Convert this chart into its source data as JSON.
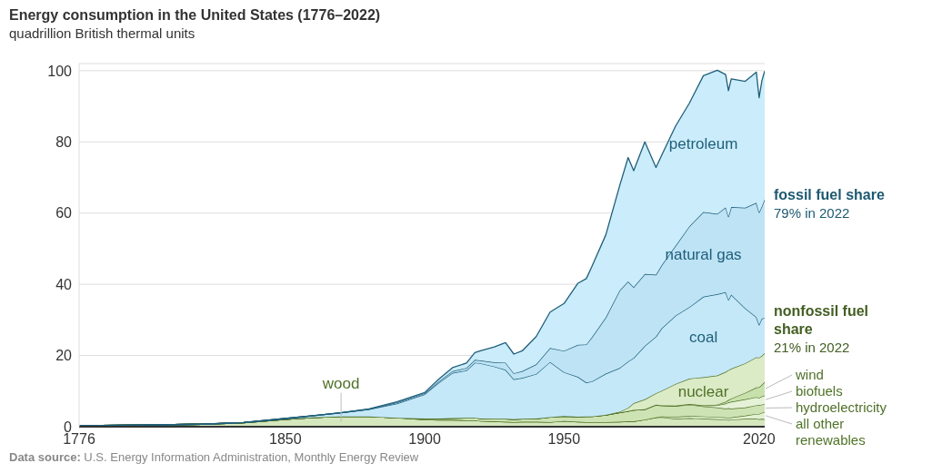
{
  "chart_data": {
    "type": "area",
    "stacked": true,
    "title": "Energy consumption in the United States (1776–2022)",
    "subtitle": "quadrillion British thermal units",
    "x": [
      1776,
      1800,
      1820,
      1835,
      1850,
      1860,
      1870,
      1880,
      1890,
      1900,
      1905,
      1910,
      1915,
      1918,
      1920,
      1925,
      1929,
      1932,
      1935,
      1940,
      1945,
      1950,
      1955,
      1958,
      1960,
      1965,
      1970,
      1973,
      1975,
      1979,
      1983,
      1985,
      1990,
      1995,
      2000,
      2005,
      2008,
      2009,
      2010,
      2015,
      2019,
      2020,
      2021,
      2022
    ],
    "xlim": [
      1776,
      2022
    ],
    "xticks": [
      1776,
      1850,
      1900,
      1950,
      2020
    ],
    "ylim": [
      0,
      102
    ],
    "yticks": [
      0,
      20,
      40,
      60,
      80,
      100
    ],
    "grid": "y",
    "series": [
      {
        "name": "wood",
        "color": "#d4e7bd",
        "values": [
          0.3,
          0.5,
          0.7,
          1.1,
          2.1,
          2.6,
          2.9,
          2.9,
          2.5,
          2.0,
          1.9,
          1.9,
          1.8,
          1.8,
          1.6,
          1.5,
          1.4,
          1.3,
          1.4,
          1.4,
          1.3,
          1.6,
          1.4,
          1.3,
          1.3,
          1.3,
          1.4,
          1.5,
          1.5,
          2.0,
          2.6,
          2.7,
          2.2,
          2.4,
          2.3,
          2.1,
          2.0,
          1.9,
          2.0,
          2.2,
          2.3,
          2.1,
          2.2,
          2.1
        ]
      },
      {
        "name": "all other renewables",
        "color": "#e2f0d2",
        "values": [
          0,
          0,
          0,
          0,
          0,
          0,
          0,
          0,
          0,
          0,
          0,
          0,
          0,
          0,
          0,
          0,
          0,
          0,
          0,
          0,
          0,
          0,
          0,
          0,
          0,
          0,
          0,
          0,
          0,
          0,
          0,
          0.2,
          0.6,
          0.6,
          0.6,
          0.6,
          0.6,
          0.6,
          0.6,
          0.9,
          1.3,
          1.5,
          1.7,
          2.0
        ]
      },
      {
        "name": "hydroelectricity",
        "color": "#cde3b3",
        "values": [
          0,
          0,
          0,
          0,
          0,
          0,
          0,
          0,
          0,
          0.3,
          0.4,
          0.5,
          0.7,
          0.7,
          0.7,
          0.7,
          0.8,
          0.8,
          0.8,
          0.9,
          1.4,
          1.4,
          1.4,
          1.6,
          1.6,
          2.0,
          2.6,
          2.9,
          3.2,
          2.9,
          3.5,
          3.0,
          3.0,
          3.2,
          2.8,
          2.7,
          2.5,
          2.7,
          2.5,
          2.3,
          2.4,
          2.5,
          2.3,
          2.3
        ]
      },
      {
        "name": "biofuels",
        "color": "#e6f2d8",
        "values": [
          0,
          0,
          0,
          0,
          0,
          0,
          0,
          0,
          0,
          0,
          0,
          0,
          0,
          0,
          0,
          0,
          0,
          0,
          0,
          0,
          0,
          0,
          0,
          0,
          0,
          0,
          0,
          0,
          0,
          0,
          0.1,
          0.1,
          0.1,
          0.2,
          0.2,
          0.6,
          1.4,
          1.6,
          1.9,
          2.3,
          2.3,
          2.0,
          2.3,
          2.4
        ]
      },
      {
        "name": "wind",
        "color": "#c8e0ab",
        "values": [
          0,
          0,
          0,
          0,
          0,
          0,
          0,
          0,
          0,
          0,
          0,
          0,
          0,
          0,
          0,
          0,
          0,
          0,
          0,
          0,
          0,
          0,
          0,
          0,
          0,
          0,
          0,
          0,
          0,
          0,
          0,
          0,
          0,
          0,
          0.1,
          0.2,
          0.5,
          0.7,
          0.9,
          1.8,
          2.7,
          3.0,
          3.3,
          3.8
        ]
      },
      {
        "name": "nuclear",
        "color": "#dbebc6",
        "values": [
          0,
          0,
          0,
          0,
          0,
          0,
          0,
          0,
          0,
          0,
          0,
          0,
          0,
          0,
          0,
          0,
          0,
          0,
          0,
          0,
          0,
          0,
          0,
          0,
          0,
          0,
          0.2,
          0.9,
          1.9,
          2.8,
          3.2,
          4.1,
          6.1,
          7.1,
          7.9,
          8.2,
          8.4,
          8.4,
          8.4,
          8.3,
          8.5,
          8.3,
          8.1,
          8.1
        ]
      },
      {
        "name": "coal",
        "color": "#c4e8f8",
        "values": [
          0,
          0,
          0,
          0.1,
          0.2,
          0.5,
          1.0,
          2.0,
          4.0,
          6.8,
          10.0,
          12.7,
          13.3,
          15.5,
          15.5,
          14.7,
          13.8,
          11.2,
          11.5,
          12.5,
          15.5,
          12.3,
          11.2,
          9.5,
          9.8,
          11.6,
          12.3,
          13.0,
          12.7,
          15.0,
          15.9,
          17.5,
          19.2,
          20.1,
          22.6,
          22.8,
          22.4,
          19.7,
          20.8,
          15.5,
          11.3,
          9.2,
          10.5,
          9.8
        ]
      },
      {
        "name": "natural gas",
        "color": "#bde3f5",
        "values": [
          0,
          0,
          0,
          0,
          0,
          0,
          0,
          0,
          0.3,
          0.3,
          0.4,
          0.5,
          0.7,
          0.8,
          0.8,
          1.2,
          2.0,
          1.7,
          1.9,
          2.7,
          3.9,
          6.0,
          9.0,
          10.7,
          12.4,
          15.8,
          21.8,
          22.5,
          19.9,
          20.2,
          17.4,
          17.7,
          19.6,
          22.7,
          23.8,
          22.6,
          23.8,
          23.4,
          24.6,
          28.2,
          32.1,
          31.6,
          31.5,
          33.4
        ]
      },
      {
        "name": "petroleum",
        "color": "#cbecfa",
        "values": [
          0,
          0,
          0,
          0,
          0,
          0,
          0,
          0.1,
          0.2,
          0.2,
          0.6,
          1.0,
          1.4,
          2.0,
          2.7,
          4.3,
          5.6,
          5.4,
          5.7,
          7.8,
          10.1,
          13.3,
          17.3,
          18.5,
          19.9,
          23.2,
          29.5,
          34.8,
          32.7,
          37.1,
          30.1,
          30.9,
          33.6,
          34.6,
          38.3,
          40.3,
          37.3,
          35.4,
          36.0,
          35.5,
          36.7,
          32.2,
          35.3,
          36.0
        ]
      }
    ],
    "annotations": [
      "fossil fuel share",
      "79% in 2022",
      "nonfossil fuel share",
      "21% in 2022",
      "Data source: U.S. Energy Information Administration, Monthly Energy Review"
    ]
  }
}
